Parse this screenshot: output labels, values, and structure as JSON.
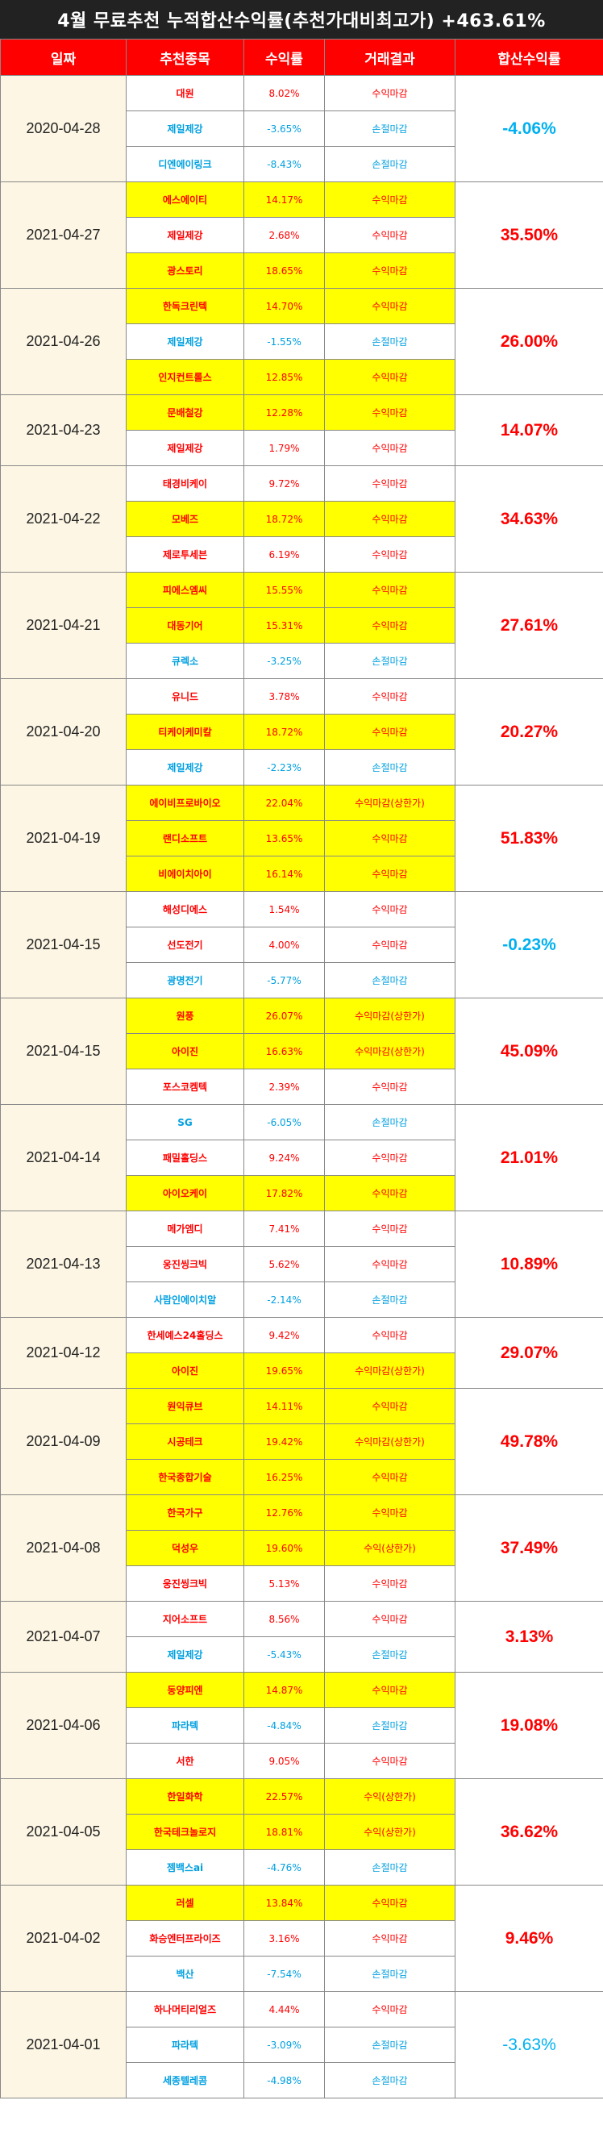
{
  "title": "4월 무료추천 누적합산수익률(추천가대비최고가) +463.61%",
  "headers": [
    "일짜",
    "추천종목",
    "수익률",
    "거래결과",
    "합산수익률"
  ],
  "groups": [
    {
      "date": "2020-04-28",
      "total": "-4.06%",
      "total_sign": "neg",
      "rows": [
        {
          "name": "대원",
          "rate": "8.02%",
          "result": "수익마감",
          "sign": "pos",
          "hl": false
        },
        {
          "name": "제일제강",
          "rate": "-3.65%",
          "result": "손절마감",
          "sign": "neg",
          "hl": false
        },
        {
          "name": "디엔에이링크",
          "rate": "-8.43%",
          "result": "손절마감",
          "sign": "neg",
          "hl": false
        }
      ]
    },
    {
      "date": "2021-04-27",
      "total": "35.50%",
      "total_sign": "pos",
      "rows": [
        {
          "name": "에스에이티",
          "rate": "14.17%",
          "result": "수익마감",
          "sign": "pos",
          "hl": true
        },
        {
          "name": "제일제강",
          "rate": "2.68%",
          "result": "수익마감",
          "sign": "pos",
          "hl": false
        },
        {
          "name": "광스토리",
          "rate": "18.65%",
          "result": "수익마감",
          "sign": "pos",
          "hl": true
        }
      ]
    },
    {
      "date": "2021-04-26",
      "total": "26.00%",
      "total_sign": "pos",
      "rows": [
        {
          "name": "한독크린텍",
          "rate": "14.70%",
          "result": "수익마감",
          "sign": "pos",
          "hl": true
        },
        {
          "name": "제일제강",
          "rate": "-1.55%",
          "result": "손절마감",
          "sign": "neg",
          "hl": false
        },
        {
          "name": "인지컨트롤스",
          "rate": "12.85%",
          "result": "수익마감",
          "sign": "pos",
          "hl": true
        }
      ]
    },
    {
      "date": "2021-04-23",
      "total": "14.07%",
      "total_sign": "pos",
      "rows": [
        {
          "name": "문배철강",
          "rate": "12.28%",
          "result": "수익마감",
          "sign": "pos",
          "hl": true
        },
        {
          "name": "제일제강",
          "rate": "1.79%",
          "result": "수익마감",
          "sign": "pos",
          "hl": false
        }
      ]
    },
    {
      "date": "2021-04-22",
      "total": "34.63%",
      "total_sign": "pos",
      "rows": [
        {
          "name": "태경비케이",
          "rate": "9.72%",
          "result": "수익마감",
          "sign": "pos",
          "hl": false
        },
        {
          "name": "모베즈",
          "rate": "18.72%",
          "result": "수익마감",
          "sign": "pos",
          "hl": true
        },
        {
          "name": "제로투세븐",
          "rate": "6.19%",
          "result": "수익마감",
          "sign": "pos",
          "hl": false
        }
      ]
    },
    {
      "date": "2021-04-21",
      "total": "27.61%",
      "total_sign": "pos",
      "rows": [
        {
          "name": "피에스엠씨",
          "rate": "15.55%",
          "result": "수익마감",
          "sign": "pos",
          "hl": true
        },
        {
          "name": "대동기어",
          "rate": "15.31%",
          "result": "수익마감",
          "sign": "pos",
          "hl": true
        },
        {
          "name": "큐렉소",
          "rate": "-3.25%",
          "result": "손절마감",
          "sign": "neg",
          "hl": false
        }
      ]
    },
    {
      "date": "2021-04-20",
      "total": "20.27%",
      "total_sign": "pos",
      "rows": [
        {
          "name": "유니드",
          "rate": "3.78%",
          "result": "수익마감",
          "sign": "pos",
          "hl": false
        },
        {
          "name": "티케이케미칼",
          "rate": "18.72%",
          "result": "수익마감",
          "sign": "pos",
          "hl": true
        },
        {
          "name": "제일제강",
          "rate": "-2.23%",
          "result": "손절마감",
          "sign": "neg",
          "hl": false
        }
      ]
    },
    {
      "date": "2021-04-19",
      "total": "51.83%",
      "total_sign": "pos",
      "rows": [
        {
          "name": "에이비프로바이오",
          "rate": "22.04%",
          "result": "수익마감(상한가)",
          "sign": "pos",
          "hl": true
        },
        {
          "name": "랜디소프트",
          "rate": "13.65%",
          "result": "수익마감",
          "sign": "pos",
          "hl": true
        },
        {
          "name": "비에이치아이",
          "rate": "16.14%",
          "result": "수익마감",
          "sign": "pos",
          "hl": true
        }
      ]
    },
    {
      "date": "2021-04-15",
      "total": "-0.23%",
      "total_sign": "neg",
      "rows": [
        {
          "name": "해성디에스",
          "rate": "1.54%",
          "result": "수익마감",
          "sign": "pos",
          "hl": false
        },
        {
          "name": "선도전기",
          "rate": "4.00%",
          "result": "수익마감",
          "sign": "pos",
          "hl": false
        },
        {
          "name": "광명전기",
          "rate": "-5.77%",
          "result": "손절마감",
          "sign": "neg",
          "hl": false
        }
      ]
    },
    {
      "date": "2021-04-15",
      "total": "45.09%",
      "total_sign": "pos",
      "rows": [
        {
          "name": "원풍",
          "rate": "26.07%",
          "result": "수익마감(상한가)",
          "sign": "pos",
          "hl": true
        },
        {
          "name": "아이진",
          "rate": "16.63%",
          "result": "수익마감(상한가)",
          "sign": "pos",
          "hl": true
        },
        {
          "name": "포스코켐텍",
          "rate": "2.39%",
          "result": "수익마감",
          "sign": "pos",
          "hl": false
        }
      ]
    },
    {
      "date": "2021-04-14",
      "total": "21.01%",
      "total_sign": "pos",
      "rows": [
        {
          "name": "SG",
          "rate": "-6.05%",
          "result": "손절마감",
          "sign": "neg",
          "hl": false
        },
        {
          "name": "패밀홀딩스",
          "rate": "9.24%",
          "result": "수익마감",
          "sign": "pos",
          "hl": false
        },
        {
          "name": "아이오케이",
          "rate": "17.82%",
          "result": "수익마감",
          "sign": "pos",
          "hl": true
        }
      ]
    },
    {
      "date": "2021-04-13",
      "total": "10.89%",
      "total_sign": "pos",
      "rows": [
        {
          "name": "메가엠디",
          "rate": "7.41%",
          "result": "수익마감",
          "sign": "pos",
          "hl": false
        },
        {
          "name": "웅진씽크빅",
          "rate": "5.62%",
          "result": "수익마감",
          "sign": "pos",
          "hl": false
        },
        {
          "name": "사람인에이치알",
          "rate": "-2.14%",
          "result": "손절마감",
          "sign": "neg",
          "hl": false
        }
      ]
    },
    {
      "date": "2021-04-12",
      "total": "29.07%",
      "total_sign": "pos",
      "rows": [
        {
          "name": "한세예스24홀딩스",
          "rate": "9.42%",
          "result": "수익마감",
          "sign": "pos",
          "hl": false
        },
        {
          "name": "아이진",
          "rate": "19.65%",
          "result": "수익마감(상한가)",
          "sign": "pos",
          "hl": true
        }
      ]
    },
    {
      "date": "2021-04-09",
      "total": "49.78%",
      "total_sign": "pos",
      "rows": [
        {
          "name": "원익큐브",
          "rate": "14.11%",
          "result": "수익마감",
          "sign": "pos",
          "hl": true
        },
        {
          "name": "시공테크",
          "rate": "19.42%",
          "result": "수익마감(상한가)",
          "sign": "pos",
          "hl": true
        },
        {
          "name": "한국종합기술",
          "rate": "16.25%",
          "result": "수익마감",
          "sign": "pos",
          "hl": true
        }
      ]
    },
    {
      "date": "2021-04-08",
      "total": "37.49%",
      "total_sign": "pos",
      "rows": [
        {
          "name": "한국가구",
          "rate": "12.76%",
          "result": "수익마감",
          "sign": "pos",
          "hl": true
        },
        {
          "name": "덕성우",
          "rate": "19.60%",
          "result": "수익(상한가)",
          "sign": "pos",
          "hl": true
        },
        {
          "name": "웅진씽크빅",
          "rate": "5.13%",
          "result": "수익마감",
          "sign": "pos",
          "hl": false
        }
      ]
    },
    {
      "date": "2021-04-07",
      "total": "3.13%",
      "total_sign": "pos",
      "rows": [
        {
          "name": "지어소프트",
          "rate": "8.56%",
          "result": "수익마감",
          "sign": "pos",
          "hl": false
        },
        {
          "name": "제일제강",
          "rate": "-5.43%",
          "result": "손절마감",
          "sign": "neg",
          "hl": false
        }
      ]
    },
    {
      "date": "2021-04-06",
      "total": "19.08%",
      "total_sign": "pos",
      "rows": [
        {
          "name": "동양피엔",
          "rate": "14.87%",
          "result": "수익마감",
          "sign": "pos",
          "hl": true
        },
        {
          "name": "파라텍",
          "rate": "-4.84%",
          "result": "손절마감",
          "sign": "neg",
          "hl": false
        },
        {
          "name": "서한",
          "rate": "9.05%",
          "result": "수익마감",
          "sign": "pos",
          "hl": false
        }
      ]
    },
    {
      "date": "2021-04-05",
      "total": "36.62%",
      "total_sign": "pos",
      "rows": [
        {
          "name": "한일화학",
          "rate": "22.57%",
          "result": "수익(상한가)",
          "sign": "pos",
          "hl": true
        },
        {
          "name": "한국테크놀로지",
          "rate": "18.81%",
          "result": "수익(상한가)",
          "sign": "pos",
          "hl": true
        },
        {
          "name": "젬백스ai",
          "rate": "-4.76%",
          "result": "손절마감",
          "sign": "neg",
          "hl": false
        }
      ]
    },
    {
      "date": "2021-04-02",
      "total": "9.46%",
      "total_sign": "pos",
      "rows": [
        {
          "name": "러셀",
          "rate": "13.84%",
          "result": "수익마감",
          "sign": "pos",
          "hl": true
        },
        {
          "name": "화승엔터프라이즈",
          "rate": "3.16%",
          "result": "수익마감",
          "sign": "pos",
          "hl": false
        },
        {
          "name": "백산",
          "rate": "-7.54%",
          "result": "손절마감",
          "sign": "neg",
          "hl": false
        }
      ]
    },
    {
      "date": "2021-04-01",
      "total": "-3.63%",
      "total_sign": "neg_light",
      "rows": [
        {
          "name": "하나머티리얼즈",
          "rate": "4.44%",
          "result": "수익마감",
          "sign": "pos",
          "hl": false
        },
        {
          "name": "파라텍",
          "rate": "-3.09%",
          "result": "손절마감",
          "sign": "neg",
          "hl": false
        },
        {
          "name": "세종텔레콤",
          "rate": "-4.98%",
          "result": "손절마감",
          "sign": "neg",
          "hl": false
        }
      ]
    }
  ]
}
